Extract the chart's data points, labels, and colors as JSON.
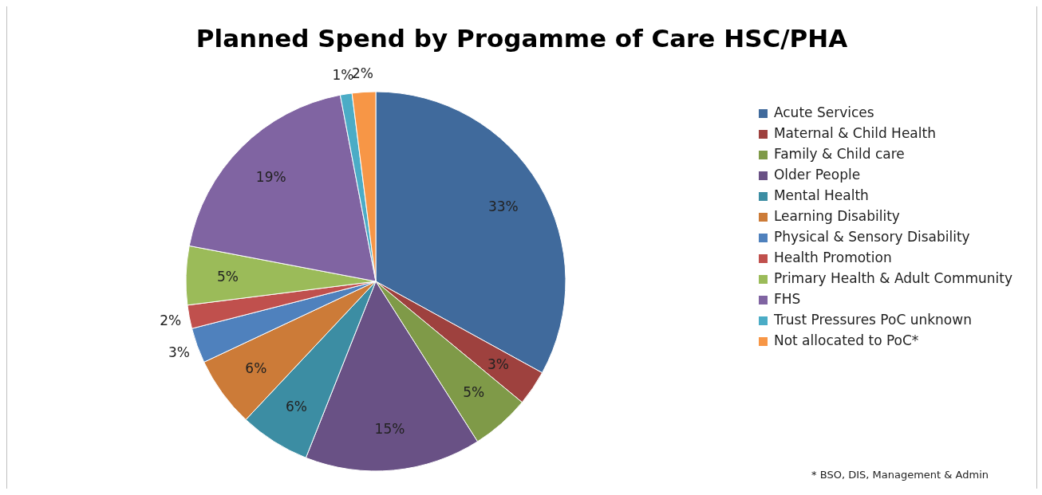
{
  "chart_data": {
    "type": "pie",
    "title": "Planned Spend by Progamme of Care HSC/PHA",
    "categories": [
      "Acute Services",
      "Maternal & Child Health",
      "Family & Child care",
      "Older People",
      "Mental Health",
      "Learning Disability",
      "Physical & Sensory Disability",
      "Health Promotion",
      "Primary Health & Adult Community",
      "FHS",
      "Trust Pressures PoC unknown",
      "Not allocated to PoC*"
    ],
    "values": [
      33,
      3,
      5,
      15,
      6,
      6,
      3,
      2,
      5,
      19,
      1,
      2
    ],
    "value_labels": [
      "33%",
      "3%",
      "5%",
      "15%",
      "6%",
      "6%",
      "3%",
      "2%",
      "5%",
      "19%",
      "1%",
      "2%"
    ],
    "colors": [
      "#406a9c",
      "#9e413e",
      "#7f9a48",
      "#695185",
      "#3c8da3",
      "#cc7b38",
      "#4f81bd",
      "#c0504d",
      "#9bbb59",
      "#8064a2",
      "#4bacc6",
      "#f79646"
    ],
    "legend": "right",
    "annotations": [
      "* BSO, DIS, Management & Admin"
    ]
  }
}
